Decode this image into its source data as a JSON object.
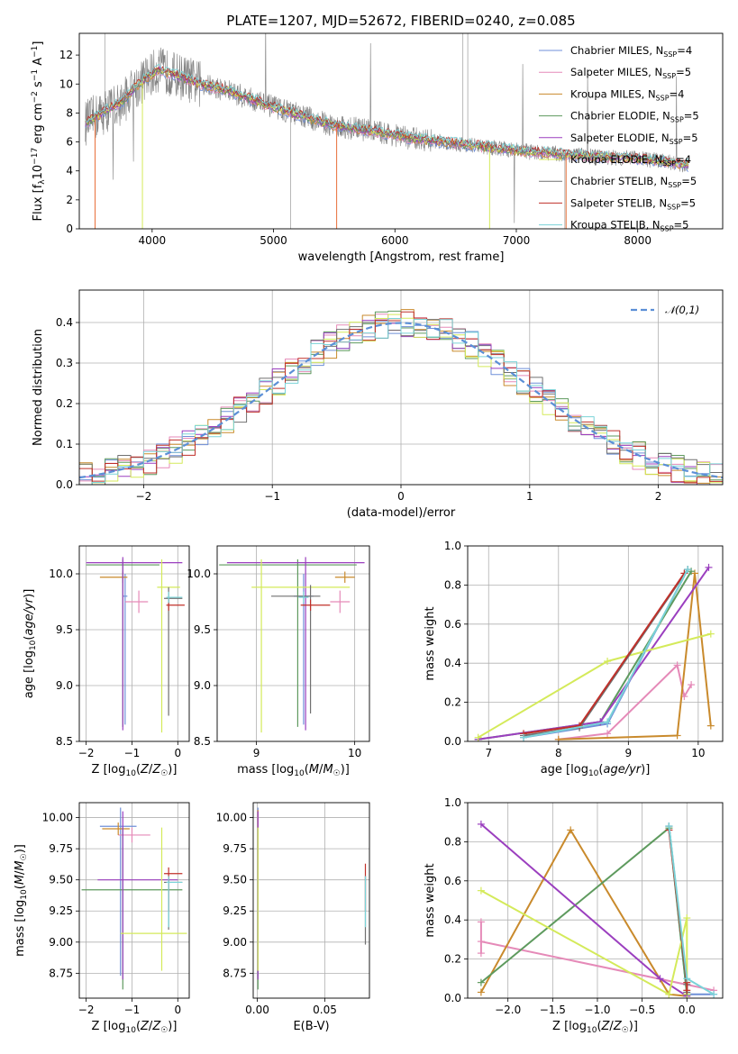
{
  "figure": {
    "title": "PLATE=1207, MJD=52672, FIBERID=0240, z=0.085",
    "model_colors": {
      "Chabrier MILES": "#6f8fd8",
      "Salpeter MILES": "#e58ab8",
      "Kroupa MILES": "#c98a2c",
      "Chabrier ELODIE": "#5e9a5e",
      "Salpeter ELODIE": "#9b3fbf",
      "Kroupa ELODIE": "#d4ea5a",
      "Chabrier STELIB": "#707070",
      "Salpeter STELIB": "#c0302a",
      "Kroupa STELIB": "#7ad3d8"
    }
  },
  "chart_data": [
    {
      "id": "spectrum",
      "type": "line",
      "xlabel": "wavelength [Angstrom, rest frame]",
      "ylabel": "Flux [f_λ10^−17 erg cm^−2 s^−1 A^−1]",
      "xlim": [
        3400,
        8700
      ],
      "ylim": [
        0,
        13.5
      ],
      "xticks": [
        4000,
        5000,
        6000,
        7000,
        8000
      ],
      "yticks": [
        0,
        2,
        4,
        6,
        8,
        10,
        12
      ],
      "grid": false,
      "legend_position": "top-right",
      "continuum": {
        "x": [
          3450,
          3550,
          3650,
          3750,
          3850,
          3950,
          4050,
          4200,
          4400,
          4600,
          4800,
          5000,
          5200,
          5500,
          5800,
          6100,
          6400,
          6700,
          7000,
          7300,
          7600,
          7900,
          8200,
          8400
        ],
        "y": [
          7.3,
          7.8,
          8.3,
          8.7,
          9.7,
          10.4,
          11.0,
          10.6,
          10.0,
          9.6,
          9.0,
          8.4,
          7.9,
          7.1,
          6.8,
          6.3,
          6.0,
          5.7,
          5.4,
          5.2,
          5.0,
          4.9,
          4.7,
          4.4
        ]
      },
      "series": [
        {
          "name": "Chabrier MILES, N_SSP=4"
        },
        {
          "name": "Salpeter MILES, N_SSP=5"
        },
        {
          "name": "Kroupa MILES, N_SSP=4"
        },
        {
          "name": "Chabrier ELODIE, N_SSP=5"
        },
        {
          "name": "Salpeter ELODIE, N_SSP=5"
        },
        {
          "name": "Kroupa ELODIE, N_SSP=4"
        },
        {
          "name": "Chabrier STELIB, N_SSP=5"
        },
        {
          "name": "Salpeter STELIB, N_SSP=5"
        },
        {
          "name": "Kroupa STELIB, N_SSP=5"
        }
      ]
    },
    {
      "id": "residuals",
      "type": "line",
      "xlabel": "(data-model)/error",
      "ylabel": "Normed distribution",
      "xlim": [
        -2.5,
        2.5
      ],
      "ylim": [
        0,
        0.48
      ],
      "xticks": [
        -2,
        -1,
        0,
        1,
        2
      ],
      "yticks": [
        0.0,
        0.1,
        0.2,
        0.3,
        0.4
      ],
      "grid": true,
      "legend_position": "top-right",
      "series": [
        {
          "name": "𝒩(0,1)",
          "mean": 0,
          "sigma": 1
        }
      ]
    },
    {
      "id": "age_vs_Z",
      "type": "scatter",
      "xlabel": "Z [log10(Z/Z☉)]",
      "ylabel": "age  [log10(age/yr)]",
      "xlim": [
        -2.15,
        0.25
      ],
      "ylim": [
        8.5,
        10.25
      ],
      "xticks": [
        -2,
        -1,
        0
      ],
      "yticks": [
        8.5,
        9.0,
        9.5,
        10.0
      ],
      "grid": true,
      "points": [
        {
          "model": "Chabrier MILES",
          "x": -1.15,
          "y": 9.8,
          "xerr": [
            0.05,
            0.05
          ],
          "yerr": [
            1.15,
            0.2
          ]
        },
        {
          "model": "Salpeter MILES",
          "x": -0.85,
          "y": 9.75,
          "xerr": [
            0.3,
            0.2
          ],
          "yerr": [
            0.1,
            0.1
          ]
        },
        {
          "model": "Kroupa MILES",
          "x": -1.2,
          "y": 9.97,
          "xerr": [
            0.5,
            0.1
          ],
          "yerr": [
            0.05,
            0.05
          ]
        },
        {
          "model": "Chabrier ELODIE",
          "x": -1.2,
          "y": 10.08,
          "xerr": [
            0.8,
            0.8
          ],
          "yerr": [
            1.45,
            0.05
          ]
        },
        {
          "model": "Salpeter ELODIE",
          "x": -1.2,
          "y": 10.1,
          "xerr": [
            0.8,
            1.3
          ],
          "yerr": [
            1.5,
            0.05
          ]
        },
        {
          "model": "Kroupa ELODIE",
          "x": -0.35,
          "y": 9.88,
          "xerr": [
            0.1,
            0.4
          ],
          "yerr": [
            1.3,
            0.25
          ]
        },
        {
          "model": "Chabrier STELIB",
          "x": -0.2,
          "y": 9.78,
          "xerr": [
            0.1,
            0.3
          ],
          "yerr": [
            1.05,
            0.1
          ]
        },
        {
          "model": "Salpeter STELIB",
          "x": -0.2,
          "y": 9.72,
          "xerr": [
            0.05,
            0.35
          ],
          "yerr": [
            0.05,
            0.05
          ]
        },
        {
          "model": "Kroupa STELIB",
          "x": -0.2,
          "y": 9.79,
          "xerr": [
            0.05,
            0.3
          ],
          "yerr": [
            0.05,
            0.05
          ]
        }
      ]
    },
    {
      "id": "age_vs_mass",
      "type": "scatter",
      "xlabel": "mass [log10(M/M☉)]",
      "ylabel": "",
      "xlim": [
        8.6,
        10.15
      ],
      "ylim": [
        8.5,
        10.25
      ],
      "xticks": [
        9,
        10
      ],
      "yticks": [
        8.5,
        9.0,
        9.5,
        10.0
      ],
      "grid": true,
      "points": [
        {
          "model": "Chabrier MILES",
          "x": 9.48,
          "y": 9.8,
          "xerr": [
            0.1,
            0.1
          ],
          "yerr": [
            1.15,
            0.2
          ]
        },
        {
          "model": "Salpeter MILES",
          "x": 9.85,
          "y": 9.75,
          "xerr": [
            0.1,
            0.1
          ],
          "yerr": [
            0.1,
            0.1
          ]
        },
        {
          "model": "Kroupa MILES",
          "x": 9.9,
          "y": 9.97,
          "xerr": [
            0.1,
            0.1
          ],
          "yerr": [
            0.05,
            0.05
          ]
        },
        {
          "model": "Chabrier ELODIE",
          "x": 9.42,
          "y": 10.08,
          "xerr": [
            0.8,
            0.6
          ],
          "yerr": [
            1.45,
            0.05
          ]
        },
        {
          "model": "Salpeter ELODIE",
          "x": 9.5,
          "y": 10.1,
          "xerr": [
            0.8,
            0.6
          ],
          "yerr": [
            1.5,
            0.05
          ]
        },
        {
          "model": "Kroupa ELODIE",
          "x": 9.05,
          "y": 9.88,
          "xerr": [
            0.1,
            0.9
          ],
          "yerr": [
            1.3,
            0.25
          ]
        },
        {
          "model": "Chabrier STELIB",
          "x": 9.55,
          "y": 9.8,
          "xerr": [
            0.4,
            0.1
          ],
          "yerr": [
            1.05,
            0.1
          ]
        },
        {
          "model": "Salpeter STELIB",
          "x": 9.55,
          "y": 9.72,
          "xerr": [
            0.1,
            0.2
          ],
          "yerr": [
            0.05,
            0.05
          ]
        },
        {
          "model": "Kroupa STELIB",
          "x": 9.48,
          "y": 9.79,
          "xerr": [
            0.05,
            0.05
          ],
          "yerr": [
            0.05,
            0.05
          ]
        }
      ]
    },
    {
      "id": "massweight_vs_age",
      "type": "line",
      "xlabel": "age  [log10(age/yr)]",
      "ylabel": "mass weight",
      "xlim": [
        6.7,
        10.35
      ],
      "ylim": [
        0,
        1.0
      ],
      "xticks": [
        7,
        8,
        9,
        10
      ],
      "yticks": [
        0.0,
        0.2,
        0.4,
        0.6,
        0.8,
        1.0
      ],
      "grid": true,
      "series": [
        {
          "model": "Chabrier MILES",
          "x": [
            7.5,
            8.7,
            9.85
          ],
          "y": [
            0.02,
            0.09,
            0.88
          ]
        },
        {
          "model": "Salpeter MILES",
          "x": [
            8.0,
            8.7,
            9.7,
            9.8,
            9.9
          ],
          "y": [
            0.01,
            0.04,
            0.39,
            0.23,
            0.29
          ]
        },
        {
          "model": "Kroupa MILES",
          "x": [
            8.0,
            9.7,
            9.95,
            10.18
          ],
          "y": [
            0.01,
            0.03,
            0.86,
            0.08
          ]
        },
        {
          "model": "Chabrier ELODIE",
          "x": [
            6.85,
            8.6,
            9.9
          ],
          "y": [
            0.01,
            0.1,
            0.87
          ]
        },
        {
          "model": "Salpeter ELODIE",
          "x": [
            6.85,
            8.6,
            10.15
          ],
          "y": [
            0.01,
            0.1,
            0.89
          ]
        },
        {
          "model": "Kroupa ELODIE",
          "x": [
            6.85,
            8.7,
            10.18
          ],
          "y": [
            0.02,
            0.41,
            0.55
          ]
        },
        {
          "model": "Chabrier STELIB",
          "x": [
            7.5,
            8.3,
            9.85
          ],
          "y": [
            0.03,
            0.07,
            0.88
          ]
        },
        {
          "model": "Salpeter STELIB",
          "x": [
            7.5,
            8.3,
            9.8
          ],
          "y": [
            0.04,
            0.08,
            0.86
          ]
        },
        {
          "model": "Kroupa STELIB",
          "x": [
            7.5,
            8.7,
            9.85
          ],
          "y": [
            0.02,
            0.1,
            0.88
          ]
        }
      ]
    },
    {
      "id": "mass_vs_Z",
      "type": "scatter",
      "xlabel": "Z [log10(Z/Z☉)]",
      "ylabel": "mass [log10(M/M☉)]",
      "xlim": [
        -2.15,
        0.25
      ],
      "ylim": [
        8.55,
        10.12
      ],
      "xticks": [
        -2,
        -1,
        0
      ],
      "yticks": [
        8.75,
        9.0,
        9.25,
        9.5,
        9.75,
        10.0
      ],
      "grid": true,
      "points": [
        {
          "model": "Chabrier MILES",
          "x": -1.25,
          "y": 9.93,
          "xerr": [
            0.45,
            0.35
          ],
          "yerr": [
            1.2,
            0.15
          ]
        },
        {
          "model": "Salpeter MILES",
          "x": -1.0,
          "y": 9.86,
          "xerr": [
            0.3,
            0.4
          ],
          "yerr": [
            0.06,
            0.06
          ]
        },
        {
          "model": "Kroupa MILES",
          "x": -1.3,
          "y": 9.91,
          "xerr": [
            0.35,
            0.25
          ],
          "yerr": [
            0.05,
            0.05
          ]
        },
        {
          "model": "Chabrier ELODIE",
          "x": -1.2,
          "y": 9.42,
          "xerr": [
            0.9,
            1.3
          ],
          "yerr": [
            0.8,
            0.5
          ]
        },
        {
          "model": "Salpeter ELODIE",
          "x": -1.2,
          "y": 9.5,
          "xerr": [
            0.55,
            1.2
          ],
          "yerr": [
            0.8,
            0.55
          ]
        },
        {
          "model": "Kroupa ELODIE",
          "x": -0.35,
          "y": 9.07,
          "xerr": [
            0.9,
            0.55
          ],
          "yerr": [
            0.3,
            0.85
          ]
        },
        {
          "model": "Chabrier STELIB",
          "x": -0.2,
          "y": 9.48,
          "xerr": [
            0.1,
            0.3
          ],
          "yerr": [
            0.38,
            0.05
          ]
        },
        {
          "model": "Salpeter STELIB",
          "x": -0.2,
          "y": 9.55,
          "xerr": [
            0.1,
            0.3
          ],
          "yerr": [
            0.3,
            0.05
          ]
        },
        {
          "model": "Kroupa STELIB",
          "x": -0.2,
          "y": 9.48,
          "xerr": [
            0.05,
            0.3
          ],
          "yerr": [
            0.36,
            0.05
          ]
        }
      ]
    },
    {
      "id": "mass_vs_EBV",
      "type": "scatter",
      "xlabel": "E(B-V)",
      "ylabel": "",
      "xlim": [
        -0.003,
        0.083
      ],
      "ylim": [
        8.55,
        10.12
      ],
      "xticks": [
        0.0,
        0.05
      ],
      "yticks": [
        8.75,
        9.0,
        9.25,
        9.5,
        9.75,
        10.0
      ],
      "grid": true,
      "points": [
        {
          "model": "Chabrier MILES",
          "x": 0.0005,
          "y": 9.93,
          "yerr": [
            1.2,
            0.15
          ]
        },
        {
          "model": "Salpeter MILES",
          "x": 0.0005,
          "y": 9.86,
          "yerr": [
            0.5,
            0.2
          ]
        },
        {
          "model": "Kroupa MILES",
          "x": 0.0005,
          "y": 9.91,
          "yerr": [
            0.4,
            0.15
          ]
        },
        {
          "model": "Chabrier ELODIE",
          "x": 0.0005,
          "y": 9.42,
          "yerr": [
            0.8,
            0.5
          ]
        },
        {
          "model": "Salpeter ELODIE",
          "x": 0.0005,
          "y": 9.5,
          "yerr": [
            0.8,
            0.55
          ]
        },
        {
          "model": "Kroupa ELODIE",
          "x": 0.0005,
          "y": 9.07,
          "yerr": [
            0.3,
            0.85
          ]
        },
        {
          "model": "Chabrier STELIB",
          "x": 0.08,
          "y": 9.48,
          "yerr": [
            0.5,
            0.05
          ]
        },
        {
          "model": "Salpeter STELIB",
          "x": 0.08,
          "y": 9.55,
          "yerr": [
            0.3,
            0.08
          ]
        },
        {
          "model": "Kroupa STELIB",
          "x": 0.08,
          "y": 9.48,
          "yerr": [
            0.36,
            0.05
          ]
        }
      ]
    },
    {
      "id": "massweight_vs_Z",
      "type": "line",
      "xlabel": "Z [log10(Z/Z☉)]",
      "ylabel": "mass weight",
      "xlim": [
        -2.45,
        0.4
      ],
      "ylim": [
        0,
        1.0
      ],
      "xticks": [
        -2.0,
        -1.5,
        -1.0,
        -0.5,
        0.0
      ],
      "yticks": [
        0.0,
        0.2,
        0.4,
        0.6,
        0.8,
        1.0
      ],
      "grid": true,
      "series": [
        {
          "model": "Chabrier MILES",
          "x": [
            -0.2,
            0.0,
            0.3
          ],
          "y": [
            0.88,
            0.02,
            0.02
          ]
        },
        {
          "model": "Salpeter MILES",
          "x": [
            -2.3,
            -2.3,
            -2.3,
            0.3
          ],
          "y": [
            0.39,
            0.23,
            0.29,
            0.04
          ]
        },
        {
          "model": "Kroupa MILES",
          "x": [
            -2.3,
            -1.3,
            -0.2,
            0.0
          ],
          "y": [
            0.03,
            0.86,
            0.02,
            0.01
          ]
        },
        {
          "model": "Chabrier ELODIE",
          "x": [
            -2.3,
            -0.2,
            0.0
          ],
          "y": [
            0.08,
            0.87,
            0.02
          ]
        },
        {
          "model": "Salpeter ELODIE",
          "x": [
            -2.3,
            -0.3,
            0.0
          ],
          "y": [
            0.89,
            0.1,
            0.01
          ]
        },
        {
          "model": "Kroupa ELODIE",
          "x": [
            -2.3,
            -0.2,
            0.0,
            0.0
          ],
          "y": [
            0.55,
            0.02,
            0.41,
            0.02
          ]
        },
        {
          "model": "Chabrier STELIB",
          "x": [
            -0.2,
            0.0,
            0.0
          ],
          "y": [
            0.88,
            0.07,
            0.03
          ]
        },
        {
          "model": "Salpeter STELIB",
          "x": [
            -0.2,
            0.0,
            0.0
          ],
          "y": [
            0.86,
            0.08,
            0.04
          ]
        },
        {
          "model": "Kroupa STELIB",
          "x": [
            -0.2,
            0.0,
            0.3
          ],
          "y": [
            0.88,
            0.1,
            0.02
          ]
        }
      ]
    }
  ]
}
